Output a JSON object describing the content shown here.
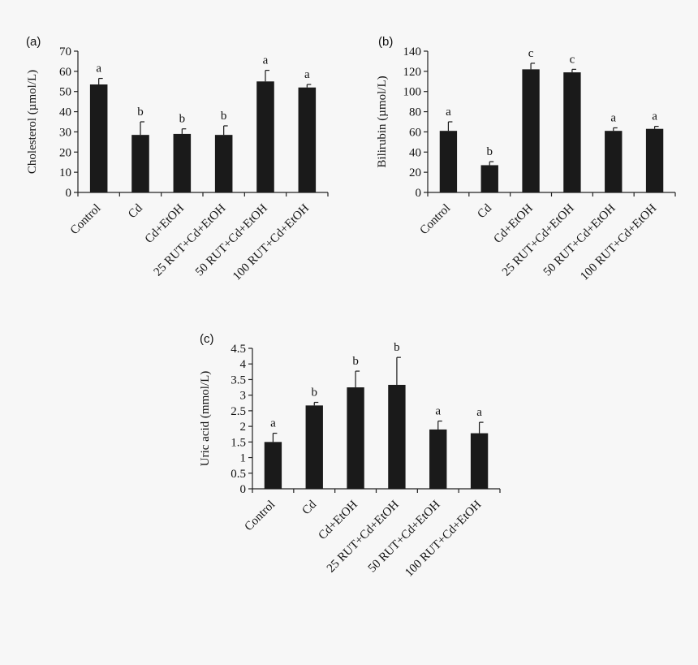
{
  "chart_data": [
    {
      "panel_label": "(a)",
      "type": "bar",
      "ylabel": "Cholesterol (µmol/L)",
      "ylim": [
        0,
        70
      ],
      "yticks": [
        0,
        10,
        20,
        30,
        40,
        50,
        60,
        70
      ],
      "categories": [
        "Control",
        "Cd",
        "Cd+EtOH",
        "25 RUT+Cd+EtOH",
        "50 RUT+Cd+EtOH",
        "100 RUT+Cd+EtOH"
      ],
      "values": [
        53.5,
        28.5,
        29,
        28.5,
        55,
        52
      ],
      "errors": [
        3,
        6.5,
        2.5,
        4.5,
        5.5,
        1.5
      ],
      "significance": [
        "a",
        "b",
        "b",
        "b",
        "a",
        "a"
      ]
    },
    {
      "panel_label": "(b)",
      "type": "bar",
      "ylabel": "Bilirubin (µmol/L)",
      "ylim": [
        0,
        140
      ],
      "yticks": [
        0,
        20,
        40,
        60,
        80,
        100,
        120,
        140
      ],
      "categories": [
        "Control",
        "Cd",
        "Cd+EtOH",
        "25 RUT+Cd+EtOH",
        "50 RUT+Cd+EtOH",
        "100 RUT+Cd+EtOH"
      ],
      "values": [
        61,
        27,
        122,
        119,
        61,
        63
      ],
      "errors": [
        9,
        3.5,
        6,
        3,
        3,
        2.5
      ],
      "significance": [
        "a",
        "b",
        "c",
        "c",
        "a",
        "a"
      ]
    },
    {
      "panel_label": "(c)",
      "type": "bar",
      "ylabel": "Uric acid (mmol/L)",
      "ylim": [
        0,
        4.5
      ],
      "yticks": [
        "0",
        "0.5",
        "1",
        "1.5",
        "2",
        "2.5",
        "3",
        "3.5",
        "4",
        "4.5"
      ],
      "categories": [
        "Control",
        "Cd",
        "Cd+EtOH",
        "25 RUT+Cd+EtOH",
        "50 RUT+Cd+EtOH",
        "100 RUT+Cd+EtOH"
      ],
      "values": [
        1.5,
        2.67,
        3.25,
        3.33,
        1.9,
        1.78
      ],
      "errors": [
        0.28,
        0.1,
        0.52,
        0.88,
        0.27,
        0.35
      ],
      "significance": [
        "a",
        "b",
        "b",
        "b",
        "a",
        "a"
      ]
    }
  ]
}
